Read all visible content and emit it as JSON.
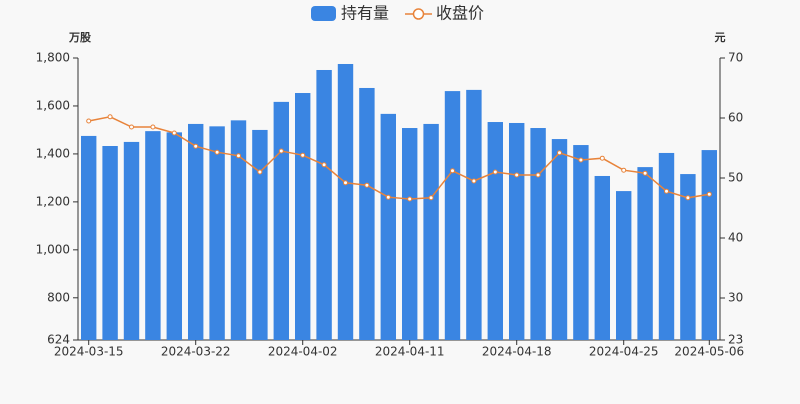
{
  "chart_data": {
    "type": "bar-line",
    "y_unit": "万股",
    "y2_unit": "元",
    "categories": [
      "2024-03-15",
      null,
      null,
      null,
      null,
      "2024-03-22",
      null,
      null,
      null,
      null,
      "2024-04-02",
      null,
      null,
      null,
      null,
      "2024-04-11",
      null,
      null,
      null,
      null,
      "2024-04-18",
      null,
      null,
      null,
      null,
      "2024-04-25",
      null,
      null,
      null,
      "2024-05-06"
    ],
    "series": [
      {
        "name": "持有量",
        "type": "bar",
        "color": "#3a85e2",
        "values": [
          1475,
          1433,
          1450,
          1495,
          1490,
          1525,
          1515,
          1540,
          1500,
          1617,
          1654,
          1750,
          1775,
          1675,
          1567,
          1508,
          1525,
          1662,
          1667,
          1533,
          1529,
          1508,
          1462,
          1437,
          1308,
          1245,
          1345,
          1404,
          1316,
          1416
        ]
      },
      {
        "name": "收盘价",
        "type": "line",
        "axis": "y2",
        "color": "#e8833a",
        "values": [
          59.5,
          60.2,
          58.5,
          58.5,
          57.5,
          55.3,
          54.3,
          53.7,
          51.0,
          54.5,
          53.8,
          52.2,
          49.2,
          48.8,
          46.8,
          46.5,
          46.7,
          51.2,
          49.5,
          51.0,
          50.5,
          50.5,
          54.2,
          53.0,
          53.3,
          51.3,
          50.8,
          47.8,
          46.7,
          47.3
        ]
      }
    ],
    "ylim": [
      624,
      1800
    ],
    "yticks": [
      624,
      800,
      {
        "value": 1000,
        "label": "1,000"
      },
      {
        "value": 1200,
        "label": "1,200"
      },
      {
        "value": 1400,
        "label": "1,400"
      },
      {
        "value": 1600,
        "label": "1,600"
      },
      {
        "value": 1800,
        "label": "1,800"
      }
    ],
    "y2lim": [
      23,
      70
    ],
    "y2ticks": [
      23,
      30,
      40,
      50,
      60,
      70
    ]
  }
}
